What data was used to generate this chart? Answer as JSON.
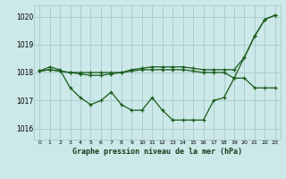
{
  "background_color": "#cce8e8",
  "grid_color": "#aacece",
  "line_color": "#1a5c1a",
  "title": "Graphe pression niveau de la mer (hPa)",
  "xlim": [
    -0.5,
    23.5
  ],
  "ylim": [
    1015.6,
    1020.4
  ],
  "yticks": [
    1016,
    1017,
    1018,
    1019,
    1020
  ],
  "xticks": [
    0,
    1,
    2,
    3,
    4,
    5,
    6,
    7,
    8,
    9,
    10,
    11,
    12,
    13,
    14,
    15,
    16,
    17,
    18,
    19,
    20,
    21,
    22,
    23
  ],
  "line1_x": [
    0,
    1,
    2,
    3,
    4,
    5,
    6,
    7,
    8,
    9,
    10,
    11,
    12,
    13,
    14,
    15,
    16,
    17,
    18,
    19,
    20,
    21,
    22,
    23
  ],
  "line1_y": [
    1018.05,
    1018.2,
    1018.1,
    1017.45,
    1017.1,
    1016.85,
    1017.0,
    1017.3,
    1016.85,
    1016.65,
    1016.65,
    1017.1,
    1016.65,
    1016.3,
    1016.3,
    1016.3,
    1016.3,
    1017.0,
    1017.1,
    1017.8,
    1018.55,
    1019.3,
    1019.9,
    1020.05
  ],
  "line2_x": [
    0,
    1,
    2,
    3,
    4,
    5,
    6,
    7,
    8,
    9,
    10,
    11,
    12,
    13,
    14,
    15,
    16,
    17,
    18,
    19,
    20,
    21,
    22,
    23
  ],
  "line2_y": [
    1018.05,
    1018.1,
    1018.05,
    1018.0,
    1018.0,
    1018.0,
    1018.0,
    1018.0,
    1018.0,
    1018.05,
    1018.1,
    1018.1,
    1018.1,
    1018.1,
    1018.1,
    1018.05,
    1018.0,
    1018.0,
    1018.0,
    1017.8,
    1017.8,
    1017.45,
    1017.45,
    1017.45
  ],
  "line3_x": [
    0,
    1,
    2,
    3,
    4,
    5,
    6,
    7,
    8,
    9,
    10,
    11,
    12,
    13,
    14,
    15,
    16,
    17,
    18,
    19,
    20,
    21,
    22,
    23
  ],
  "line3_y": [
    1018.05,
    1018.1,
    1018.05,
    1018.0,
    1017.95,
    1017.9,
    1017.9,
    1017.95,
    1018.0,
    1018.1,
    1018.15,
    1018.2,
    1018.2,
    1018.2,
    1018.2,
    1018.15,
    1018.1,
    1018.1,
    1018.1,
    1018.1,
    1018.55,
    1019.3,
    1019.9,
    1020.05
  ]
}
